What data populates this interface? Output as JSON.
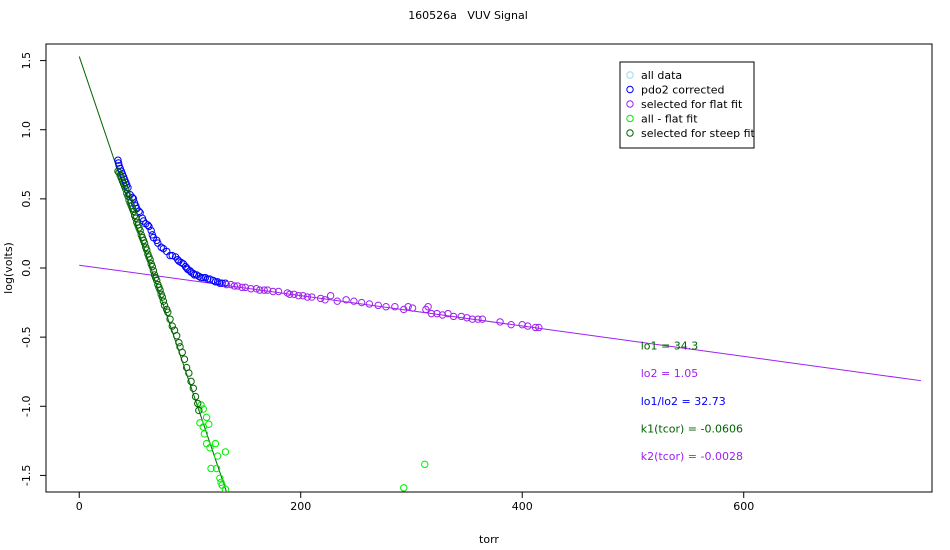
{
  "chart_data": {
    "type": "scatter",
    "title": "160526a   VUV Signal",
    "xlabel": "torr",
    "ylabel": "log(volts)",
    "xlim": [
      -30,
      770
    ],
    "ylim": [
      -1.62,
      1.62
    ],
    "xticks": [
      {
        "value": 0,
        "label": "0"
      },
      {
        "value": 200,
        "label": "200"
      },
      {
        "value": 400,
        "label": "400"
      },
      {
        "value": 600,
        "label": "600"
      }
    ],
    "yticks": [
      {
        "value": 1.5,
        "label": "1.5"
      },
      {
        "value": 1.0,
        "label": "1.0"
      },
      {
        "value": 0.5,
        "label": "0.5"
      },
      {
        "value": 0.0,
        "label": "0.0"
      },
      {
        "value": -0.5,
        "label": "-0.5"
      },
      {
        "value": -1.0,
        "label": "-1.0"
      },
      {
        "value": -1.5,
        "label": "-1.5"
      }
    ],
    "grid": false,
    "legend_position": "top-right",
    "series": [
      {
        "name": "all data",
        "color": "#99ddee",
        "points": []
      },
      {
        "name": "pdo2 corrected",
        "color": "#0000ff",
        "points": [
          [
            35,
            0.78
          ],
          [
            35.5,
            0.76
          ],
          [
            36,
            0.74
          ],
          [
            37,
            0.72
          ],
          [
            38,
            0.7
          ],
          [
            39,
            0.68
          ],
          [
            40,
            0.66
          ],
          [
            41,
            0.64
          ],
          [
            42,
            0.62
          ],
          [
            43,
            0.6
          ],
          [
            44,
            0.58
          ],
          [
            46,
            0.53
          ],
          [
            48,
            0.51
          ],
          [
            49,
            0.5
          ],
          [
            50,
            0.47
          ],
          [
            51,
            0.45
          ],
          [
            52,
            0.43
          ],
          [
            54,
            0.41
          ],
          [
            55,
            0.4
          ],
          [
            57,
            0.36
          ],
          [
            58,
            0.34
          ],
          [
            60,
            0.32
          ],
          [
            62,
            0.31
          ],
          [
            63,
            0.3
          ],
          [
            65,
            0.27
          ],
          [
            66,
            0.24
          ],
          [
            67,
            0.22
          ],
          [
            70,
            0.2
          ],
          [
            71,
            0.18
          ],
          [
            74,
            0.15
          ],
          [
            76,
            0.14
          ],
          [
            79,
            0.12
          ],
          [
            82,
            0.09
          ],
          [
            84,
            0.09
          ],
          [
            87,
            0.08
          ],
          [
            89,
            0.06
          ],
          [
            90,
            0.05
          ],
          [
            92,
            0.04
          ],
          [
            94,
            0.03
          ],
          [
            96,
            0.01
          ],
          [
            97,
            0.0
          ],
          [
            98,
            -0.01
          ],
          [
            100,
            -0.02
          ],
          [
            101,
            -0.03
          ],
          [
            103,
            -0.04
          ],
          [
            104,
            -0.05
          ],
          [
            106,
            -0.05
          ],
          [
            108,
            -0.06
          ],
          [
            110,
            -0.07
          ],
          [
            112,
            -0.07
          ],
          [
            114,
            -0.07
          ],
          [
            116,
            -0.08
          ],
          [
            118,
            -0.08
          ],
          [
            121,
            -0.09
          ],
          [
            123,
            -0.1
          ],
          [
            125,
            -0.1
          ],
          [
            127,
            -0.11
          ],
          [
            129,
            -0.11
          ],
          [
            132,
            -0.11
          ]
        ]
      },
      {
        "name": "selected for flat fit",
        "color": "#a020f0",
        "points": [
          [
            133,
            -0.12
          ],
          [
            137,
            -0.12
          ],
          [
            140,
            -0.13
          ],
          [
            143,
            -0.13
          ],
          [
            147,
            -0.14
          ],
          [
            150,
            -0.14
          ],
          [
            155,
            -0.15
          ],
          [
            160,
            -0.15
          ],
          [
            163,
            -0.16
          ],
          [
            167,
            -0.16
          ],
          [
            170,
            -0.16
          ],
          [
            175,
            -0.17
          ],
          [
            180,
            -0.17
          ],
          [
            188,
            -0.18
          ],
          [
            190,
            -0.19
          ],
          [
            194,
            -0.19
          ],
          [
            198,
            -0.2
          ],
          [
            202,
            -0.2
          ],
          [
            206,
            -0.21
          ],
          [
            210,
            -0.21
          ],
          [
            218,
            -0.22
          ],
          [
            222,
            -0.23
          ],
          [
            227,
            -0.2
          ],
          [
            233,
            -0.24
          ],
          [
            241,
            -0.23
          ],
          [
            248,
            -0.24
          ],
          [
            255,
            -0.25
          ],
          [
            262,
            -0.26
          ],
          [
            270,
            -0.27
          ],
          [
            277,
            -0.28
          ],
          [
            285,
            -0.28
          ],
          [
            293,
            -0.3
          ],
          [
            297,
            -0.28
          ],
          [
            301,
            -0.29
          ],
          [
            313,
            -0.3
          ],
          [
            315,
            -0.28
          ],
          [
            318,
            -0.33
          ],
          [
            323,
            -0.33
          ],
          [
            328,
            -0.34
          ],
          [
            333,
            -0.33
          ],
          [
            338,
            -0.35
          ],
          [
            345,
            -0.35
          ],
          [
            350,
            -0.36
          ],
          [
            355,
            -0.37
          ],
          [
            360,
            -0.37
          ],
          [
            364,
            -0.37
          ],
          [
            380,
            -0.39
          ],
          [
            390,
            -0.41
          ],
          [
            400,
            -0.41
          ],
          [
            405,
            -0.42
          ],
          [
            412,
            -0.43
          ],
          [
            415,
            -0.43
          ]
        ]
      },
      {
        "name": "all - flat fit",
        "color": "#00ee00",
        "points": [
          [
            110,
            -0.99
          ],
          [
            112,
            -1.02
          ],
          [
            115,
            -1.08
          ],
          [
            117,
            -1.13
          ],
          [
            112,
            -1.15
          ],
          [
            109,
            -1.12
          ],
          [
            113,
            -1.2
          ],
          [
            115,
            -1.27
          ],
          [
            118,
            -1.3
          ],
          [
            123,
            -1.27
          ],
          [
            125,
            -1.36
          ],
          [
            132,
            -1.33
          ],
          [
            119,
            -1.45
          ],
          [
            124,
            -1.45
          ],
          [
            127,
            -1.52
          ],
          [
            128,
            -1.55
          ],
          [
            129,
            -1.57
          ],
          [
            132,
            -1.6
          ],
          [
            312,
            -1.42
          ],
          [
            293,
            -1.59
          ]
        ]
      },
      {
        "name": "selected for steep fit",
        "color": "#006400",
        "points": [
          [
            35,
            0.7
          ],
          [
            36,
            0.69
          ],
          [
            37,
            0.67
          ],
          [
            38,
            0.65
          ],
          [
            39,
            0.63
          ],
          [
            40,
            0.61
          ],
          [
            41,
            0.59
          ],
          [
            42,
            0.57
          ],
          [
            43,
            0.54
          ],
          [
            44,
            0.52
          ],
          [
            45,
            0.49
          ],
          [
            46,
            0.47
          ],
          [
            47,
            0.45
          ],
          [
            48,
            0.43
          ],
          [
            49,
            0.41
          ],
          [
            50,
            0.38
          ],
          [
            51,
            0.36
          ],
          [
            52,
            0.33
          ],
          [
            53,
            0.31
          ],
          [
            54,
            0.29
          ],
          [
            55,
            0.27
          ],
          [
            56,
            0.24
          ],
          [
            57,
            0.22
          ],
          [
            58,
            0.2
          ],
          [
            59,
            0.18
          ],
          [
            60,
            0.15
          ],
          [
            61,
            0.13
          ],
          [
            62,
            0.1
          ],
          [
            63,
            0.08
          ],
          [
            64,
            0.06
          ],
          [
            65,
            0.03
          ],
          [
            66,
            0.01
          ],
          [
            67,
            -0.02
          ],
          [
            68,
            -0.05
          ],
          [
            69,
            -0.07
          ],
          [
            70,
            -0.09
          ],
          [
            71,
            -0.12
          ],
          [
            72,
            -0.14
          ],
          [
            73,
            -0.16
          ],
          [
            74,
            -0.19
          ],
          [
            75,
            -0.21
          ],
          [
            76,
            -0.24
          ],
          [
            77,
            -0.27
          ],
          [
            79,
            -0.3
          ],
          [
            80,
            -0.32
          ],
          [
            82,
            -0.37
          ],
          [
            84,
            -0.42
          ],
          [
            86,
            -0.45
          ],
          [
            88,
            -0.49
          ],
          [
            90,
            -0.54
          ],
          [
            91,
            -0.57
          ],
          [
            93,
            -0.61
          ],
          [
            95,
            -0.66
          ],
          [
            97,
            -0.72
          ],
          [
            99,
            -0.76
          ],
          [
            101,
            -0.82
          ],
          [
            103,
            -0.87
          ],
          [
            105,
            -0.93
          ],
          [
            107,
            -0.98
          ],
          [
            108,
            -1.03
          ]
        ]
      }
    ],
    "fit_lines": [
      {
        "name": "flat fit",
        "color": "#a020f0",
        "x0": 0,
        "y0": 0.02,
        "x1": 760,
        "y1": -0.815
      },
      {
        "name": "steep fit",
        "color": "#006400",
        "x0": 0,
        "y0": 1.53,
        "x1": 133,
        "y1": -1.62
      }
    ],
    "annotations": [
      {
        "text": "lo1 = 34.3",
        "color": "#006400",
        "x": 507,
        "y": -0.59
      },
      {
        "text": "lo2 = 1.05",
        "color": "#a020f0",
        "x": 507,
        "y": -0.79
      },
      {
        "text": "lo1/lo2 = 32.73",
        "color": "#0000ff",
        "x": 507,
        "y": -0.99
      },
      {
        "text": "k1(tcor) = -0.0606",
        "color": "#006400",
        "x": 507,
        "y": -1.19
      },
      {
        "text": "k2(tcor) = -0.0028",
        "color": "#a020f0",
        "x": 507,
        "y": -1.39
      }
    ]
  }
}
